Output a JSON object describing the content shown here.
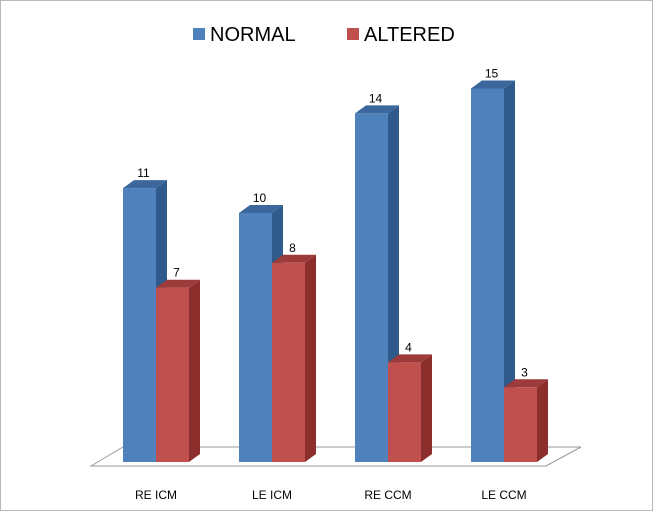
{
  "chart_data": {
    "type": "bar",
    "style": "3d-clustered-column",
    "categories": [
      "RE ICM",
      "LE ICM",
      "RE CCM",
      "LE CCM"
    ],
    "series": [
      {
        "name": "NORMAL",
        "color": "#4f81bd",
        "side_color": "#2e5a8c",
        "top_color": "#3b679c",
        "values": [
          11,
          10,
          14,
          15
        ]
      },
      {
        "name": "ALTERED",
        "color": "#c0504d",
        "side_color": "#8c2e2c",
        "top_color": "#9c3b39",
        "values": [
          7,
          8,
          4,
          3
        ]
      }
    ],
    "legend_position": "top-center",
    "data_labels": true,
    "grid": false,
    "ylim": [
      0,
      15
    ]
  }
}
